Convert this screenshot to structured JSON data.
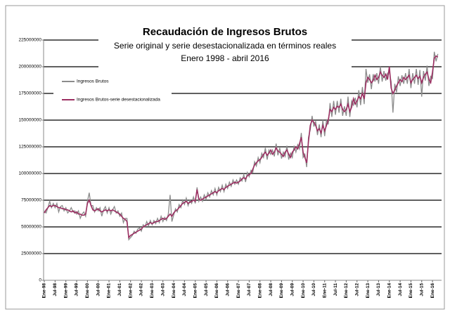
{
  "chart_data": {
    "type": "line",
    "title": "Recaudación de Ingresos Brutos",
    "subtitle": "Serie original y serie desestacionalizada en términos reales",
    "subtitle2": "Enero 1998 - abril 2016",
    "categories": [
      "Ene-98",
      null,
      null,
      null,
      null,
      null,
      "Jul-98",
      null,
      null,
      null,
      null,
      null,
      "Ene-99",
      null,
      null,
      null,
      null,
      null,
      "Jul-99",
      null,
      null,
      null,
      null,
      null,
      "Ene-00",
      null,
      null,
      null,
      null,
      null,
      "Jul-00",
      null,
      null,
      null,
      null,
      null,
      "Ene-01",
      null,
      null,
      null,
      null,
      null,
      "Jul-01",
      null,
      null,
      null,
      null,
      null,
      "Ene-02",
      null,
      null,
      null,
      null,
      null,
      "Jul-02",
      null,
      null,
      null,
      null,
      null,
      "Ene-03",
      null,
      null,
      null,
      null,
      null,
      "Jul-03",
      null,
      null,
      null,
      null,
      null,
      "Ene-04",
      null,
      null,
      null,
      null,
      null,
      "Jul-04",
      null,
      null,
      null,
      null,
      null,
      "Ene-05",
      null,
      null,
      null,
      null,
      null,
      "Jul-05",
      null,
      null,
      null,
      null,
      null,
      "Ene-06",
      null,
      null,
      null,
      null,
      null,
      "Jul-06",
      null,
      null,
      null,
      null,
      null,
      "Ene-07",
      null,
      null,
      null,
      null,
      null,
      "Jul-07",
      null,
      null,
      null,
      null,
      null,
      "Ene-08",
      null,
      null,
      null,
      null,
      null,
      "Jul-08",
      null,
      null,
      null,
      null,
      null,
      "Ene-09",
      null,
      null,
      null,
      null,
      null,
      "Jul-09",
      null,
      null,
      null,
      null,
      null,
      "Ene-10",
      null,
      null,
      null,
      null,
      null,
      "Jul-10",
      null,
      null,
      null,
      null,
      null,
      "Ene-11",
      null,
      null,
      null,
      null,
      null,
      "Jul-11",
      null,
      null,
      null,
      null,
      null,
      "Ene-12",
      null,
      null,
      null,
      null,
      null,
      "Jul-12",
      null,
      null,
      null,
      null,
      null,
      "Ene-13",
      null,
      null,
      null,
      null,
      null,
      "Jul-13",
      null,
      null,
      null,
      null,
      null,
      "Ene-14",
      null,
      null,
      null,
      null,
      null,
      "Jul-14",
      null,
      null,
      null,
      null,
      null,
      "Ene-15",
      null,
      null,
      null,
      null,
      null,
      "Jul-15",
      null,
      null,
      null,
      null,
      null,
      "Ene-16",
      null,
      null,
      null
    ],
    "series": [
      {
        "name": "Ingresos Brutos",
        "color": "#8c8c8c",
        "values": [
          65000000.0,
          63000000.0,
          68000000.0,
          74000000.0,
          68000000.0,
          72000000.0,
          68000000.0,
          72000000.0,
          64000000.0,
          69000000.0,
          70000000.0,
          65000000.0,
          68000000.0,
          63000000.0,
          65000000.0,
          68000000.0,
          64000000.0,
          65000000.0,
          62000000.0,
          65000000.0,
          58000000.0,
          62000000.0,
          64000000.0,
          60000000.0,
          74000000.0,
          82000000.0,
          70000000.0,
          70000000.0,
          64000000.0,
          68000000.0,
          65000000.0,
          68000000.0,
          60000000.0,
          66000000.0,
          69000000.0,
          63000000.0,
          68000000.0,
          62000000.0,
          66000000.0,
          69000000.0,
          63000000.0,
          65000000.0,
          60000000.0,
          63000000.0,
          54000000.0,
          58000000.0,
          58000000.0,
          38000000.0,
          40000000.0,
          42000000.0,
          46000000.0,
          44000000.0,
          48000000.0,
          49000000.0,
          46000000.0,
          52000000.0,
          50000000.0,
          55000000.0,
          51000000.0,
          56000000.0,
          52000000.0,
          56000000.0,
          53000000.0,
          58000000.0,
          54000000.0,
          60000000.0,
          55000000.0,
          59000000.0,
          56000000.0,
          62000000.0,
          80000000.0,
          55000000.0,
          61000000.0,
          67000000.0,
          64000000.0,
          71000000.0,
          68000000.0,
          75000000.0,
          71000000.0,
          77000000.0,
          70000000.0,
          75000000.0,
          72000000.0,
          78000000.0,
          72000000.0,
          87000000.0,
          74000000.0,
          78000000.0,
          74000000.0,
          80000000.0,
          76000000.0,
          82000000.0,
          78000000.0,
          84000000.0,
          80000000.0,
          86000000.0,
          80000000.0,
          87000000.0,
          83000000.0,
          89000000.0,
          83000000.0,
          90000000.0,
          86000000.0,
          92000000.0,
          88000000.0,
          94000000.0,
          90000000.0,
          94000000.0,
          90000000.0,
          96000000.0,
          93000000.0,
          99000000.0,
          92000000.0,
          101000000.0,
          97000000.0,
          103000000.0,
          101000000.0,
          111000000.0,
          107000000.0,
          115000000.0,
          110000000.0,
          119000000.0,
          115000000.0,
          124000000.0,
          113000000.0,
          122000000.0,
          118000000.0,
          122000000.0,
          116000000.0,
          128000000.0,
          117000000.0,
          124000000.0,
          114000000.0,
          120000000.0,
          116000000.0,
          126000000.0,
          113000000.0,
          119000000.0,
          115000000.0,
          126000000.0,
          120000000.0,
          127000000.0,
          123000000.0,
          138000000.0,
          115000000.0,
          118000000.0,
          106000000.0,
          134000000.0,
          141000000.0,
          154000000.0,
          144000000.0,
          149000000.0,
          136000000.0,
          146000000.0,
          134000000.0,
          150000000.0,
          135000000.0,
          150000000.0,
          146000000.0,
          166000000.0,
          153000000.0,
          168000000.0,
          155000000.0,
          168000000.0,
          157000000.0,
          170000000.0,
          154000000.0,
          163000000.0,
          154000000.0,
          172000000.0,
          153000000.0,
          168000000.0,
          164000000.0,
          171000000.0,
          162000000.0,
          178000000.0,
          164000000.0,
          181000000.0,
          165000000.0,
          198000000.0,
          185000000.0,
          193000000.0,
          179000000.0,
          193000000.0,
          186000000.0,
          194000000.0,
          184000000.0,
          200000000.0,
          186000000.0,
          196000000.0,
          187000000.0,
          194000000.0,
          195000000.0,
          186000000.0,
          157000000.0,
          184000000.0,
          176000000.0,
          191000000.0,
          182000000.0,
          192000000.0,
          184000000.0,
          194000000.0,
          184000000.0,
          198000000.0,
          180000000.0,
          194000000.0,
          184000000.0,
          198000000.0,
          183000000.0,
          197000000.0,
          172000000.0,
          196000000.0,
          187000000.0,
          201000000.0,
          182000000.0,
          191000000.0,
          189000000.0,
          214000000.0,
          205000000.0,
          212000000.0
        ]
      },
      {
        "name": "Ingresos Brutos-serie desestacionalizada",
        "color": "#9c2f62",
        "values": [
          63000000.0,
          66000000.0,
          68000000.0,
          70000000.0,
          69000000.0,
          70000000.0,
          70000000.0,
          69000000.0,
          68000000.0,
          68000000.0,
          67000000.0,
          67000000.0,
          66000000.0,
          66000000.0,
          65000000.0,
          64000000.0,
          65000000.0,
          63000000.0,
          64000000.0,
          62000000.0,
          62000000.0,
          61000000.0,
          61000000.0,
          62000000.0,
          72000000.0,
          75000000.0,
          70000000.0,
          66000000.0,
          65000000.0,
          66000000.0,
          67000000.0,
          65000000.0,
          64000000.0,
          65000000.0,
          66000000.0,
          65000000.0,
          66000000.0,
          65000000.0,
          66000000.0,
          65000000.0,
          64000000.0,
          63000000.0,
          62000000.0,
          60000000.0,
          58000000.0,
          57000000.0,
          55000000.0,
          40000000.0,
          42000000.0,
          43000000.0,
          44000000.0,
          45000000.0,
          46000000.0,
          47000000.0,
          48000000.0,
          50000000.0,
          51000000.0,
          52000000.0,
          53000000.0,
          54000000.0,
          53000000.0,
          54000000.0,
          55000000.0,
          55000000.0,
          56000000.0,
          57000000.0,
          58000000.0,
          57000000.0,
          58000000.0,
          60000000.0,
          62000000.0,
          60000000.0,
          63000000.0,
          65000000.0,
          66000000.0,
          68000000.0,
          70000000.0,
          72000000.0,
          73000000.0,
          74000000.0,
          72000000.0,
          73000000.0,
          74000000.0,
          75000000.0,
          74000000.0,
          85000000.0,
          76000000.0,
          75000000.0,
          76000000.0,
          77000000.0,
          78000000.0,
          79000000.0,
          80000000.0,
          81000000.0,
          82000000.0,
          83000000.0,
          82000000.0,
          84000000.0,
          85000000.0,
          86000000.0,
          85000000.0,
          87000000.0,
          88000000.0,
          89000000.0,
          90000000.0,
          91000000.0,
          92000000.0,
          91000000.0,
          92000000.0,
          93000000.0,
          95000000.0,
          96000000.0,
          95000000.0,
          98000000.0,
          99000000.0,
          100000000.0,
          104000000.0,
          108000000.0,
          110000000.0,
          112000000.0,
          113000000.0,
          115000000.0,
          118000000.0,
          120000000.0,
          117000000.0,
          119000000.0,
          122000000.0,
          118000000.0,
          120000000.0,
          124000000.0,
          121000000.0,
          120000000.0,
          118000000.0,
          116000000.0,
          120000000.0,
          122000000.0,
          118000000.0,
          115000000.0,
          120000000.0,
          122000000.0,
          125000000.0,
          123000000.0,
          128000000.0,
          134000000.0,
          120000000.0,
          115000000.0,
          110000000.0,
          130000000.0,
          145000000.0,
          150000000.0,
          148000000.0,
          145000000.0,
          140000000.0,
          142000000.0,
          138000000.0,
          145000000.0,
          140000000.0,
          145000000.0,
          150000000.0,
          160000000.0,
          158000000.0,
          162000000.0,
          160000000.0,
          163000000.0,
          162000000.0,
          165000000.0,
          160000000.0,
          158000000.0,
          160000000.0,
          165000000.0,
          158000000.0,
          162000000.0,
          170000000.0,
          165000000.0,
          168000000.0,
          172000000.0,
          170000000.0,
          175000000.0,
          170000000.0,
          185000000.0,
          190000000.0,
          188000000.0,
          185000000.0,
          187000000.0,
          192000000.0,
          188000000.0,
          190000000.0,
          195000000.0,
          192000000.0,
          190000000.0,
          193000000.0,
          188000000.0,
          200000000.0,
          180000000.0,
          175000000.0,
          178000000.0,
          182000000.0,
          185000000.0,
          188000000.0,
          186000000.0,
          190000000.0,
          188000000.0,
          190000000.0,
          192000000.0,
          185000000.0,
          188000000.0,
          190000000.0,
          192000000.0,
          189000000.0,
          191000000.0,
          185000000.0,
          190000000.0,
          193000000.0,
          195000000.0,
          188000000.0,
          185000000.0,
          195000000.0,
          208000000.0,
          210000000.0,
          209000000.0
        ]
      }
    ],
    "ylim": [
      0,
      225000000
    ],
    "yticks": [
      0,
      25000000,
      50000000,
      75000000,
      100000000,
      125000000,
      150000000,
      175000000,
      200000000,
      225000000
    ],
    "grid": true
  }
}
